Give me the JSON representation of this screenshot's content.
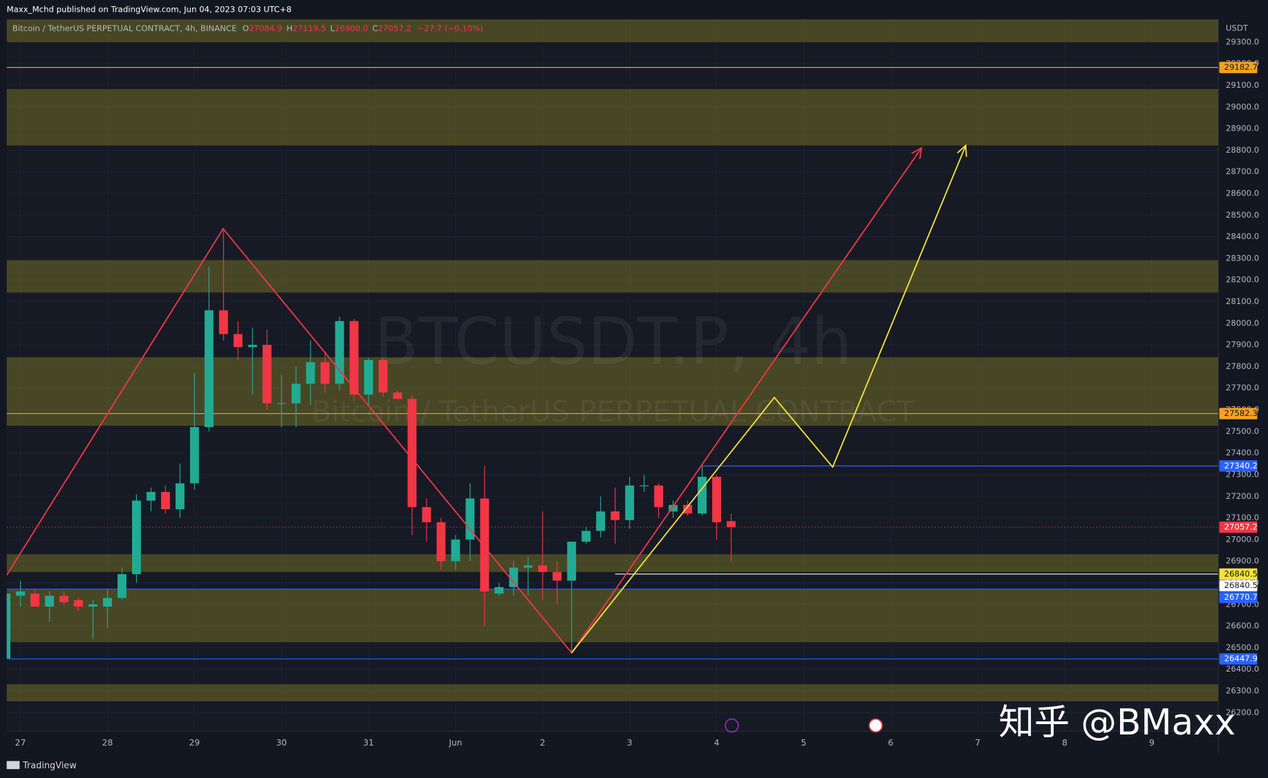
{
  "chart_data": {
    "type": "candlestick",
    "header": "Maxx_Mchd published on TradingView.com, Jun 04, 2023 07:03 UTC+8",
    "legend": {
      "symbol": "Bitcoin / TetherUS PERPETUAL CONTRACT, 4h, BINANCE",
      "items": [
        {
          "key": "O",
          "value": "27084.9"
        },
        {
          "key": "H",
          "value": "27119.5"
        },
        {
          "key": "L",
          "value": "26900.0"
        },
        {
          "key": "C",
          "value": "27057.2"
        }
      ],
      "change": "−27.7 (−0.10%)"
    },
    "watermark": {
      "title": "BTCUSDT.P, 4h",
      "subtitle": "Bitcoin / TetherUS PERPETUAL CONTRACT"
    },
    "currency": "USDT",
    "footer": "TradingView",
    "credit": "知乎 @BMaxx",
    "up_color": "#22ab94",
    "down_color": "#f23645",
    "grid": true,
    "xlim": [
      -3.8,
      330.4
    ],
    "ylim": [
      26114,
      29405
    ],
    "xticks": [
      {
        "value": 0,
        "label": "27"
      },
      {
        "value": 24,
        "label": "28"
      },
      {
        "value": 48,
        "label": "29"
      },
      {
        "value": 72,
        "label": "30"
      },
      {
        "value": 96,
        "label": "31"
      },
      {
        "value": 120,
        "label": "Jun"
      },
      {
        "value": 144,
        "label": "2"
      },
      {
        "value": 168,
        "label": "3"
      },
      {
        "value": 192,
        "label": "4"
      },
      {
        "value": 216,
        "label": "5"
      },
      {
        "value": 240,
        "label": "6"
      },
      {
        "value": 264,
        "label": "7"
      },
      {
        "value": 288,
        "label": "8"
      },
      {
        "value": 312,
        "label": "9"
      }
    ],
    "yticks": [
      {
        "value": 26200,
        "label": "26200.0"
      },
      {
        "value": 26300,
        "label": "26300.0"
      },
      {
        "value": 26400,
        "label": "26400.0"
      },
      {
        "value": 26500,
        "label": "26500.0"
      },
      {
        "value": 26600,
        "label": "26600.0"
      },
      {
        "value": 26700,
        "label": "26700.0"
      },
      {
        "value": 26800,
        "label": "26800.0"
      },
      {
        "value": 26900,
        "label": "26900.0"
      },
      {
        "value": 27000,
        "label": "27000.0"
      },
      {
        "value": 27100,
        "label": "27100.0"
      },
      {
        "value": 27200,
        "label": "27200.0"
      },
      {
        "value": 27300,
        "label": "27300.0"
      },
      {
        "value": 27400,
        "label": "27400.0"
      },
      {
        "value": 27500,
        "label": "27500.0"
      },
      {
        "value": 27600,
        "label": "27600.0"
      },
      {
        "value": 27700,
        "label": "27700.0"
      },
      {
        "value": 27800,
        "label": "27800.0"
      },
      {
        "value": 27900,
        "label": "27900.0"
      },
      {
        "value": 28000,
        "label": "28000.0"
      },
      {
        "value": 28100,
        "label": "28100.0"
      },
      {
        "value": 28200,
        "label": "28200.0"
      },
      {
        "value": 28300,
        "label": "28300.0"
      },
      {
        "value": 28400,
        "label": "28400.0"
      },
      {
        "value": 28500,
        "label": "28500.0"
      },
      {
        "value": 28600,
        "label": "28600.0"
      },
      {
        "value": 28700,
        "label": "28700.0"
      },
      {
        "value": 28800,
        "label": "28800.0"
      },
      {
        "value": 28900,
        "label": "28900.0"
      },
      {
        "value": 29000,
        "label": "29000.0"
      },
      {
        "value": 29100,
        "label": "29100.0"
      },
      {
        "value": 29200,
        "label": "29200.0"
      },
      {
        "value": 29300,
        "label": "29300.0"
      }
    ],
    "zones": [
      [
        29300,
        29405
      ],
      [
        28822,
        29083
      ],
      [
        28142,
        28292
      ],
      [
        27526,
        27843
      ],
      [
        26850,
        26932
      ],
      [
        26525,
        26768
      ],
      [
        26252,
        26331
      ]
    ],
    "zone_color": "#6b6526",
    "levels": [
      {
        "value": 29182.7,
        "color": "#f7a21b",
        "text_color": "#131722"
      },
      {
        "value": 27582.3,
        "color": "#f7a21b",
        "text_color": "#131722"
      },
      {
        "value": 27340.2,
        "color": "#2962ff",
        "text_color": "#ffffff",
        "start": 188
      },
      {
        "value": 27057.2,
        "color": "#f23645",
        "text_color": "#ffffff",
        "dashed": true
      },
      {
        "value": 26840.5,
        "color": "#f5e13a",
        "text_color": "#131722",
        "line": false
      },
      {
        "value": 26840.5,
        "color": "#ffffff",
        "text_color": "#131722",
        "start": 164
      },
      {
        "value": 26770.7,
        "color": "#2962ff",
        "text_color": "#ffffff"
      },
      {
        "value": 26447.9,
        "color": "#2962ff",
        "text_color": "#ffffff"
      }
    ],
    "candles": {
      "x": [
        -4,
        0,
        4,
        8,
        12,
        16,
        20,
        24,
        28,
        32,
        36,
        40,
        44,
        48,
        52,
        56,
        60,
        64,
        68,
        72,
        76,
        80,
        84,
        88,
        92,
        96,
        100,
        104,
        108,
        112,
        116,
        120,
        124,
        128,
        132,
        136,
        140,
        144,
        148,
        152,
        156,
        160,
        164,
        168,
        172,
        176,
        180,
        184,
        188,
        192,
        196
      ],
      "open": [
        26450,
        26740,
        26750,
        26690,
        26740,
        26720,
        26690,
        26690,
        26730,
        26840,
        27180,
        27220,
        27140,
        27260,
        27520,
        28060,
        27950,
        27890,
        27900,
        27630,
        27630,
        27720,
        27820,
        27720,
        28010,
        27670,
        27830,
        27680,
        27650,
        27150,
        27080,
        26900,
        27000,
        27190,
        26750,
        26780,
        26870,
        26880,
        26850,
        26810,
        26990,
        27040,
        27130,
        27090,
        27250,
        27250,
        27130,
        27160,
        27120,
        27290,
        27084.9
      ],
      "high": [
        26780,
        26810,
        26770,
        26760,
        26760,
        26730,
        26720,
        26770,
        26870,
        27210,
        27240,
        27250,
        27350,
        27770,
        28260,
        28440,
        28010,
        27980,
        27970,
        27760,
        27800,
        27920,
        27870,
        28030,
        28020,
        27840,
        27840,
        27690,
        27670,
        27190,
        27100,
        27020,
        27260,
        27340,
        26800,
        26900,
        26920,
        27130,
        26900,
        26980,
        27060,
        27200,
        27240,
        27290,
        27300,
        27260,
        27180,
        27180,
        27340,
        27300,
        27119.5
      ],
      "low": [
        26440,
        26690,
        26690,
        26620,
        26700,
        26670,
        26540,
        26590,
        26720,
        26800,
        27130,
        27120,
        27100,
        27230,
        27500,
        27920,
        27830,
        27670,
        27600,
        27520,
        27520,
        27620,
        27680,
        27690,
        27640,
        27620,
        27660,
        27650,
        27020,
        26990,
        26860,
        26860,
        26900,
        26600,
        26740,
        26740,
        26740,
        26720,
        26700,
        26480,
        26980,
        27010,
        26980,
        27050,
        27220,
        27100,
        27100,
        27110,
        27110,
        27000,
        26900
      ],
      "close": [
        26750,
        26760,
        26690,
        26740,
        26710,
        26690,
        26700,
        26730,
        26840,
        27180,
        27220,
        27140,
        27260,
        27520,
        28060,
        27950,
        27890,
        27900,
        27630,
        27630,
        27720,
        27820,
        27720,
        28010,
        27670,
        27830,
        27680,
        27650,
        27150,
        27080,
        26900,
        27000,
        27190,
        26760,
        26780,
        26870,
        26880,
        26850,
        26810,
        26990,
        27040,
        27130,
        27090,
        27250,
        27250,
        27150,
        27160,
        27120,
        27290,
        27080,
        27057.2
      ]
    },
    "drawings": [
      {
        "color": "#f23645",
        "x": [
          -3.8,
          55.9,
          152,
          248.5
        ],
        "y": [
          26835,
          28437,
          26476,
          28811
        ]
      },
      {
        "color": "#f5e13a",
        "x": [
          152,
          207.9,
          224,
          260.7
        ],
        "y": [
          26476,
          27657,
          27335,
          28822
        ]
      }
    ]
  }
}
